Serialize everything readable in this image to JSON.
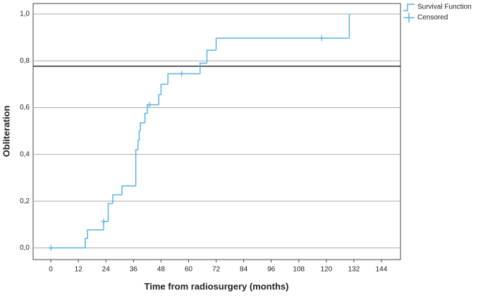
{
  "chart_data": {
    "type": "step",
    "xlabel": "Time from radiosurgery (months)",
    "ylabel": "Obliteration",
    "xlim": [
      -7.7,
      152.3
    ],
    "ylim": [
      -0.05,
      1.045
    ],
    "xticks": [
      0,
      12,
      24,
      36,
      48,
      60,
      72,
      84,
      96,
      108,
      120,
      132,
      144
    ],
    "yticks": [
      {
        "value": 0,
        "label": "0,0"
      },
      {
        "value": 0.2,
        "label": "0,2"
      },
      {
        "value": 0.4,
        "label": "0,4"
      },
      {
        "value": 0.6,
        "label": "0,6"
      },
      {
        "value": 0.8,
        "label": "0,8"
      },
      {
        "value": 1.0,
        "label": "1,0"
      }
    ],
    "grid": true,
    "reference_line": 0.777,
    "legend": "top-right",
    "series": [
      {
        "name": "Survival Function",
        "color": "#5bb3e6",
        "x": [
          0,
          15,
          16,
          23,
          25,
          27,
          31,
          37,
          38,
          38.5,
          39,
          41,
          42,
          47,
          48,
          51,
          65,
          68,
          72,
          130
        ],
        "values": [
          0,
          0.04,
          0.077,
          0.113,
          0.19,
          0.227,
          0.265,
          0.42,
          0.46,
          0.5,
          0.535,
          0.575,
          0.612,
          0.655,
          0.7,
          0.745,
          0.79,
          0.845,
          0.897,
          1.0
        ]
      },
      {
        "name": "Censored",
        "color": "#5bb3e6",
        "x": [
          0,
          23,
          43,
          57,
          118
        ],
        "values": [
          0,
          0.113,
          0.612,
          0.745,
          0.897
        ]
      }
    ]
  }
}
